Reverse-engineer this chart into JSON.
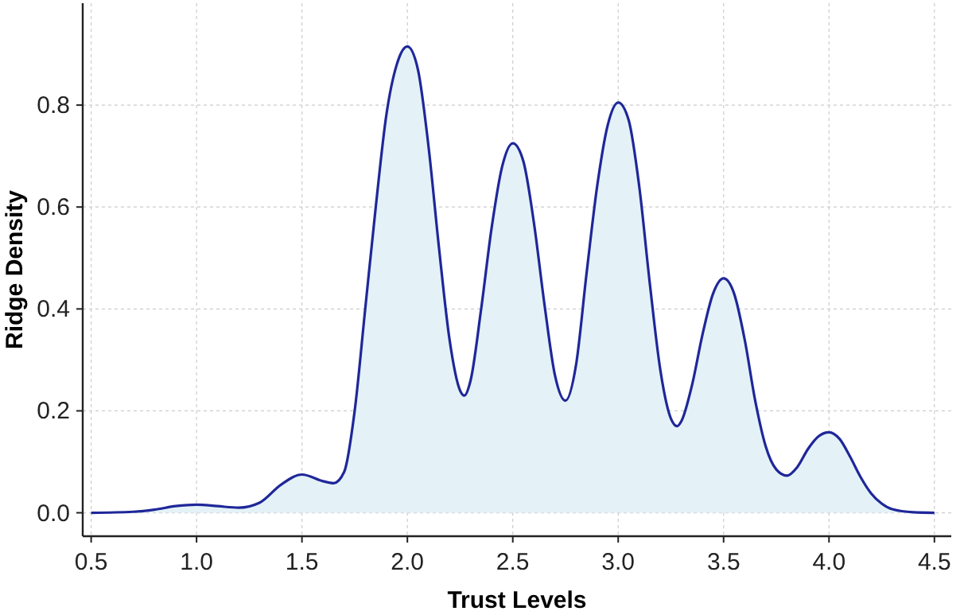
{
  "chart_data": {
    "type": "area",
    "xlabel": "Trust Levels",
    "ylabel": "Ridge Density",
    "xlim": [
      0.46,
      4.58
    ],
    "ylim": [
      -0.046,
      1.0
    ],
    "xticks": [
      {
        "value": 0.5,
        "label": "0.5"
      },
      {
        "value": 1,
        "label": "1.0"
      },
      {
        "value": 1.5,
        "label": "1.5"
      },
      {
        "value": 2,
        "label": "2.0"
      },
      {
        "value": 2.5,
        "label": "2.5"
      },
      {
        "value": 3,
        "label": "3.0"
      },
      {
        "value": 3.5,
        "label": "3.5"
      },
      {
        "value": 4,
        "label": "4.0"
      },
      {
        "value": 4.5,
        "label": "4.5"
      }
    ],
    "yticks": [
      {
        "value": 0,
        "label": "0.0"
      },
      0.2,
      0.4,
      0.6,
      0.8
    ],
    "grid": true,
    "x": [
      0.5,
      0.7,
      0.8,
      0.9,
      1.0,
      1.1,
      1.2,
      1.3,
      1.4,
      1.5,
      1.6,
      1.65,
      1.7,
      1.75,
      1.8,
      1.85,
      1.9,
      1.95,
      2.0,
      2.05,
      2.1,
      2.15,
      2.2,
      2.25,
      2.27,
      2.3,
      2.35,
      2.4,
      2.45,
      2.5,
      2.55,
      2.6,
      2.65,
      2.7,
      2.75,
      2.8,
      2.85,
      2.9,
      2.95,
      3.0,
      3.05,
      3.1,
      3.15,
      3.2,
      3.25,
      3.28,
      3.3,
      3.35,
      3.4,
      3.45,
      3.5,
      3.55,
      3.6,
      3.65,
      3.7,
      3.75,
      3.8,
      3.85,
      3.9,
      3.95,
      4.0,
      4.05,
      4.1,
      4.15,
      4.2,
      4.25,
      4.3,
      4.4,
      4.5
    ],
    "series": [
      {
        "color": "#1f2799",
        "values": [
          0,
          0.002,
          0.006,
          0.013,
          0.016,
          0.013,
          0.01,
          0.02,
          0.055,
          0.075,
          0.062,
          0.058,
          0.08,
          0.2,
          0.4,
          0.6,
          0.78,
          0.88,
          0.915,
          0.87,
          0.72,
          0.52,
          0.34,
          0.24,
          0.23,
          0.26,
          0.4,
          0.56,
          0.68,
          0.725,
          0.69,
          0.57,
          0.41,
          0.27,
          0.22,
          0.29,
          0.47,
          0.64,
          0.76,
          0.805,
          0.77,
          0.64,
          0.45,
          0.28,
          0.185,
          0.17,
          0.18,
          0.25,
          0.35,
          0.43,
          0.46,
          0.43,
          0.34,
          0.22,
          0.13,
          0.085,
          0.073,
          0.09,
          0.125,
          0.15,
          0.158,
          0.145,
          0.11,
          0.07,
          0.038,
          0.018,
          0.007,
          0.001,
          0
        ]
      }
    ]
  }
}
